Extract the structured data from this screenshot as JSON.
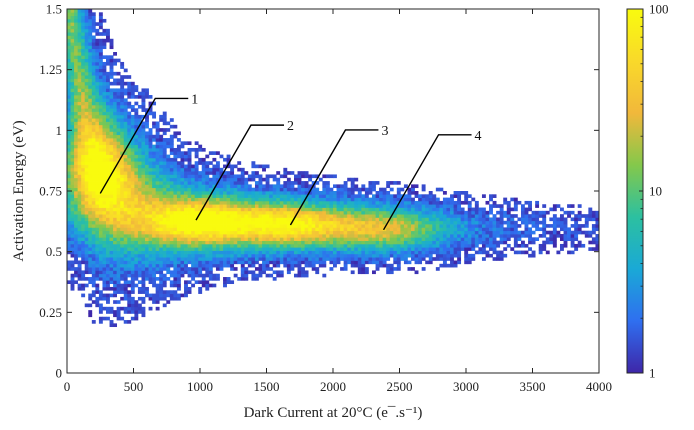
{
  "chart_data": {
    "type": "heatmap",
    "title": "",
    "xlabel": "Dark Current at 20°C (e¯.s⁻¹)",
    "ylabel": "Activation Energy (eV)",
    "xlim": [
      0,
      4000
    ],
    "ylim": [
      0,
      1.5
    ],
    "x_ticks": [
      "0",
      "500",
      "1000",
      "1500",
      "2000",
      "2500",
      "3000",
      "3500",
      "4000"
    ],
    "y_ticks": [
      "0",
      "0.25",
      "0.5",
      "0.75",
      "1",
      "1.25",
      "1.5"
    ],
    "grid": false,
    "colorbar": {
      "scale": "log",
      "range": [
        1,
        100
      ],
      "ticks": [
        "1",
        "10",
        "100"
      ],
      "colormap": [
        "#3e26a8",
        "#2f6ff0",
        "#1aa9d6",
        "#2cc0a0",
        "#84c84b",
        "#f1b83b",
        "#f9d92a",
        "#f9fb0e"
      ]
    },
    "annotations": [
      {
        "label": "1",
        "x": 250,
        "y": 0.74
      },
      {
        "label": "2",
        "x": 970,
        "y": 0.63
      },
      {
        "label": "3",
        "x": 1680,
        "y": 0.61
      },
      {
        "label": "4",
        "x": 2380,
        "y": 0.59
      }
    ],
    "density_clusters": [
      {
        "x": 200,
        "y": 0.8,
        "peak": 100
      },
      {
        "x": 980,
        "y": 0.62,
        "peak": 95
      },
      {
        "x": 1680,
        "y": 0.61,
        "peak": 70
      },
      {
        "x": 2400,
        "y": 0.59,
        "peak": 40
      }
    ]
  }
}
